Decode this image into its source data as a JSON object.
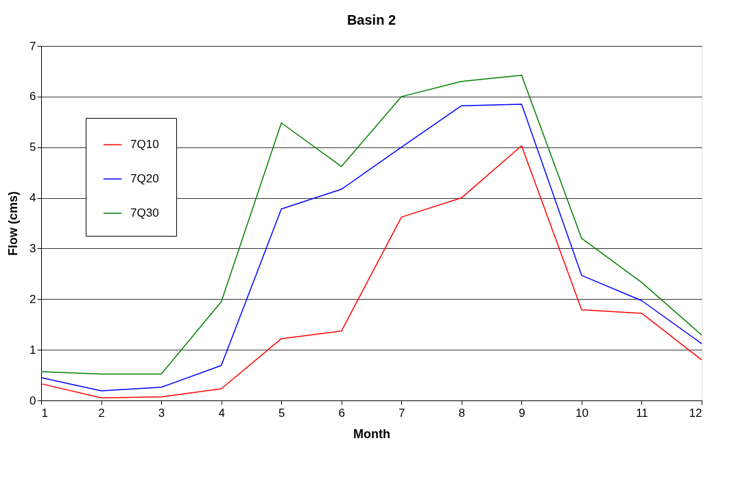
{
  "chart_data": {
    "type": "line",
    "title": "Basin 2",
    "xlabel": "Month",
    "ylabel": "Flow (cms)",
    "x": [
      1,
      2,
      3,
      4,
      5,
      6,
      7,
      8,
      9,
      10,
      11,
      12
    ],
    "series": [
      {
        "name": "7Q10",
        "color": "#ff0000",
        "values": [
          0.33,
          0.05,
          0.07,
          0.23,
          1.22,
          1.37,
          3.62,
          4.0,
          5.03,
          1.79,
          1.72,
          0.8
        ]
      },
      {
        "name": "7Q20",
        "color": "#0000ff",
        "values": [
          0.45,
          0.19,
          0.26,
          0.69,
          3.78,
          4.17,
          5.0,
          5.82,
          5.85,
          2.47,
          1.97,
          1.12
        ]
      },
      {
        "name": "7Q30",
        "color": "#008000",
        "values": [
          0.57,
          0.52,
          0.52,
          1.95,
          5.48,
          4.62,
          6.0,
          6.3,
          6.42,
          3.2,
          2.33,
          1.29
        ]
      }
    ],
    "xlim": [
      1,
      12
    ],
    "xticks": [
      1,
      2,
      3,
      4,
      5,
      6,
      7,
      8,
      9,
      10,
      11,
      12
    ],
    "ylim": [
      0,
      7
    ],
    "yticks": [
      0,
      1,
      2,
      3,
      4,
      5,
      6,
      7
    ],
    "grid": "y",
    "legend": "left",
    "marker": "none",
    "line_style": "solid"
  }
}
